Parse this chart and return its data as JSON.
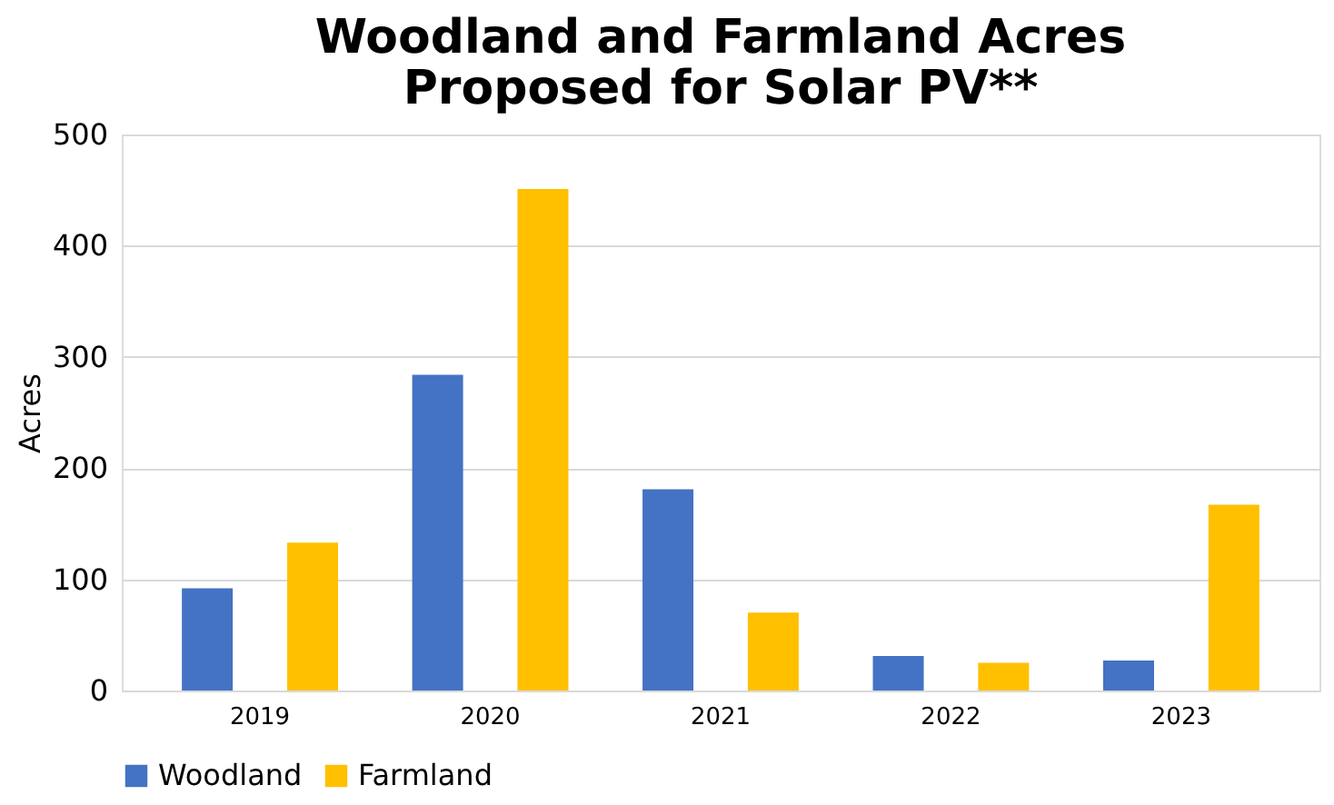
{
  "chart_data": {
    "type": "bar",
    "title": "Woodland and Farmland Acres Proposed for Solar PV**",
    "ylabel": "Acres",
    "categories": [
      "2019",
      "2020",
      "2021",
      "2022",
      "2023"
    ],
    "series": [
      {
        "name": "Woodland",
        "color": "#4472c4",
        "values": [
          92,
          284,
          181,
          31,
          27
        ]
      },
      {
        "name": "Farmland",
        "color": "#ffc000",
        "values": [
          133,
          451,
          70,
          25,
          167
        ]
      }
    ],
    "ylim": [
      0,
      500
    ],
    "yticks": [
      0,
      100,
      200,
      300,
      400,
      500
    ],
    "grid": "y",
    "legend": "bottom"
  }
}
